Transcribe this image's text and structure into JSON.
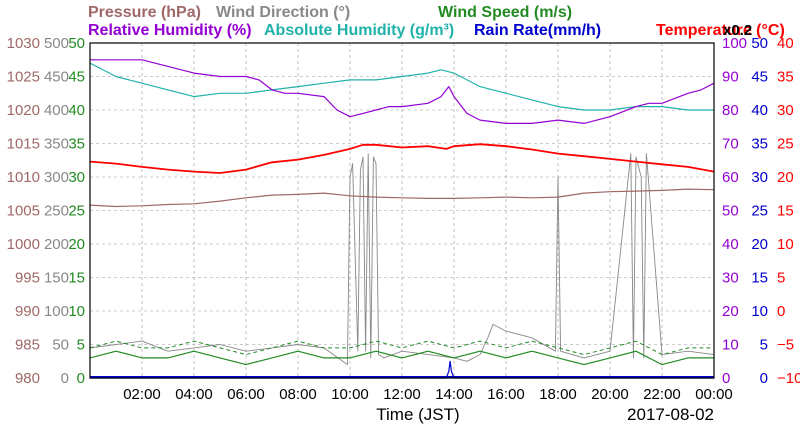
{
  "header": {
    "row1": [
      {
        "text": "Pressure (hPa)",
        "color": "#a06868"
      },
      {
        "text": "Wind Direction (°)",
        "color": "#888888"
      },
      {
        "text": "Wind Speed (m/s)",
        "color": "#228b22"
      }
    ],
    "row2": [
      {
        "text": "Relative Humidity (%)",
        "color": "#9400d3"
      },
      {
        "text": "Absolute Humidity (g/m³)",
        "color": "#20b2aa"
      },
      {
        "text": "Rain Rate(mm/h)",
        "color": "#0000cd"
      },
      {
        "text": "Temperature (°C)",
        "color": "#ff0000"
      }
    ],
    "ah_scale": "x0.2"
  },
  "chart_data": {
    "type": "line",
    "xlabel": "Time (JST)",
    "date": "2017-08-02",
    "x_ticks": [
      "02:00",
      "04:00",
      "06:00",
      "08:00",
      "10:00",
      "12:00",
      "14:00",
      "16:00",
      "18:00",
      "20:00",
      "22:00",
      "00:00"
    ],
    "xlim_hours": [
      0,
      24
    ],
    "grid": true,
    "axes": {
      "pressure": {
        "color": "#a06868",
        "ticks": [
          "1030",
          "1025",
          "1020",
          "1015",
          "1010",
          "1005",
          "1000",
          "995",
          "990",
          "985",
          "980"
        ],
        "ylim": [
          980,
          1030
        ]
      },
      "wind_direction": {
        "color": "#888888",
        "ticks": [
          "500",
          "450",
          "400",
          "350",
          "300",
          "250",
          "200",
          "150",
          "100",
          "50",
          "0"
        ],
        "ylim": [
          0,
          500
        ]
      },
      "wind_speed": {
        "color": "#228b22",
        "ticks": [
          "50",
          "45",
          "40",
          "35",
          "30",
          "25",
          "20",
          "15",
          "10",
          "5",
          "0"
        ],
        "ylim": [
          0,
          50
        ]
      },
      "humidity": {
        "color": "#9400d3",
        "ticks": [
          "100",
          "90",
          "80",
          "70",
          "60",
          "50",
          "40",
          "30",
          "20",
          "10",
          "0"
        ],
        "ylim": [
          0,
          100
        ]
      },
      "rain_rate": {
        "color": "#0000cd",
        "ticks": [
          "50",
          "45",
          "40",
          "35",
          "30",
          "25",
          "20",
          "15",
          "10",
          "5",
          "0"
        ],
        "ylim": [
          0,
          50
        ]
      },
      "temperature": {
        "color": "#ff0000",
        "ticks": [
          "40",
          "35",
          "30",
          "25",
          "20",
          "15",
          "10",
          "5",
          "0",
          "−5",
          "−10"
        ],
        "ylim": [
          -10,
          40
        ]
      }
    },
    "series": [
      {
        "name": "Pressure",
        "unit": "hPa",
        "color": "#a06868",
        "x": [
          0,
          1,
          2,
          3,
          4,
          5,
          6,
          7,
          8,
          9,
          10,
          11,
          12,
          13,
          14,
          15,
          16,
          17,
          18,
          19,
          20,
          21,
          22,
          23,
          24
        ],
        "y": [
          1005.8,
          1005.6,
          1005.7,
          1005.9,
          1006.0,
          1006.4,
          1006.9,
          1007.3,
          1007.4,
          1007.6,
          1007.2,
          1007.0,
          1006.9,
          1006.8,
          1006.8,
          1006.9,
          1007.0,
          1006.9,
          1007.0,
          1007.6,
          1007.8,
          1007.9,
          1008.0,
          1008.2,
          1008.1
        ]
      },
      {
        "name": "Temperature",
        "unit": "°C",
        "color": "#ff0000",
        "x": [
          0,
          1,
          2,
          3,
          4,
          5,
          6,
          7,
          8,
          9,
          10,
          10.5,
          11,
          12,
          13,
          13.7,
          14,
          15,
          16,
          17,
          18,
          19,
          20,
          21,
          22,
          23,
          24
        ],
        "y": [
          22.3,
          22.0,
          21.5,
          21.1,
          20.8,
          20.6,
          21.1,
          22.2,
          22.6,
          23.3,
          24.2,
          24.8,
          24.8,
          24.4,
          24.6,
          24.2,
          24.6,
          24.9,
          24.6,
          24.1,
          23.5,
          23.1,
          22.7,
          22.3,
          21.9,
          21.5,
          20.8
        ]
      },
      {
        "name": "Relative Humidity",
        "unit": "%",
        "color": "#9400d3",
        "x": [
          0,
          1,
          2,
          3,
          4,
          5,
          6,
          6.5,
          7,
          7.5,
          8,
          9,
          9.5,
          10,
          10.5,
          11,
          11.5,
          12,
          13,
          13.5,
          13.8,
          14,
          14.5,
          15,
          16,
          17,
          18,
          19,
          20,
          21,
          21.5,
          22,
          23,
          23.5,
          24
        ],
        "y": [
          95,
          95,
          95,
          93,
          91,
          90,
          90,
          89,
          86,
          85,
          85,
          84,
          80,
          78,
          79,
          80,
          81,
          81,
          82,
          84,
          87,
          84,
          79,
          77,
          76,
          76,
          77,
          76,
          78,
          81,
          82,
          82,
          85,
          86,
          88
        ]
      },
      {
        "name": "Absolute Humidity",
        "unit": "g/m³ x0.2",
        "color": "#20b2aa",
        "x": [
          0,
          1,
          2,
          3,
          4,
          5,
          6,
          7,
          8,
          9,
          10,
          11,
          12,
          13,
          13.5,
          14,
          14.5,
          15,
          16,
          17,
          18,
          19,
          20,
          21,
          22,
          23,
          24
        ],
        "y": [
          94,
          90,
          88,
          86,
          84,
          85,
          85,
          86,
          87,
          88,
          89,
          89,
          90,
          91,
          92,
          91,
          89,
          87,
          85,
          83,
          81,
          80,
          80,
          81,
          81,
          80,
          80
        ]
      },
      {
        "name": "Wind Direction",
        "unit": "°",
        "color": "#888888",
        "x": [
          0,
          1,
          2,
          3,
          4,
          5,
          6,
          7,
          8,
          9,
          9.9,
          10.0,
          10.1,
          10.3,
          10.4,
          10.5,
          10.6,
          10.7,
          10.8,
          10.9,
          11.0,
          11.1,
          11.3,
          12,
          13,
          14,
          14.5,
          15,
          15.3,
          15.5,
          16,
          17,
          17.9,
          18.0,
          18.1,
          19,
          20,
          20.8,
          20.9,
          21.0,
          21.2,
          21.3,
          21.4,
          22,
          23,
          24
        ],
        "y": [
          45,
          50,
          55,
          40,
          45,
          50,
          40,
          45,
          50,
          45,
          20,
          300,
          320,
          40,
          310,
          330,
          40,
          335,
          30,
          330,
          320,
          35,
          30,
          40,
          35,
          30,
          25,
          35,
          60,
          80,
          70,
          60,
          40,
          300,
          40,
          30,
          40,
          335,
          30,
          330,
          300,
          30,
          335,
          35,
          40,
          35
        ]
      },
      {
        "name": "Wind Speed",
        "unit": "m/s",
        "color": "#228b22",
        "x": [
          0,
          1,
          2,
          3,
          4,
          5,
          6,
          7,
          8,
          9,
          10,
          11,
          12,
          13,
          14,
          15,
          16,
          17,
          18,
          19,
          20,
          21,
          22,
          23,
          24
        ],
        "y": [
          3,
          4,
          3,
          3,
          4,
          3,
          2,
          3,
          4,
          3,
          3,
          4,
          3,
          4,
          3,
          4,
          3,
          4,
          3,
          2,
          3,
          4,
          2,
          3,
          3
        ]
      },
      {
        "name": "Rain Rate",
        "unit": "mm/h",
        "color": "#0000cd",
        "x": [
          0,
          13.7,
          13.8,
          13.85,
          13.9,
          14.0,
          24
        ],
        "y": [
          0,
          0,
          1,
          2.5,
          1,
          0,
          0
        ]
      }
    ]
  }
}
